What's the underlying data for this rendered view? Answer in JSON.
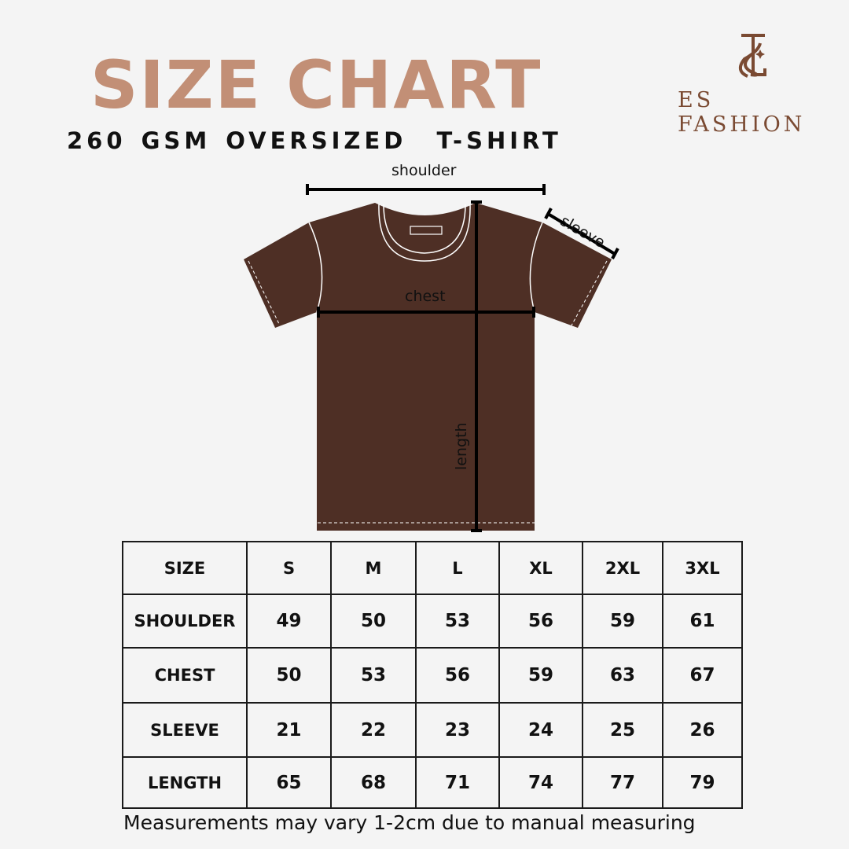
{
  "header": {
    "title": "SIZE CHART",
    "subtitle": "260 GSM OVERSIZED  T-SHIRT"
  },
  "brand": {
    "name": "ES FASHION",
    "monogram": "ES",
    "color": "#7a4a32"
  },
  "diagram": {
    "labels": {
      "shoulder": "shoulder",
      "sleeve": "sleeve",
      "chest": "chest",
      "length": "length"
    },
    "shirt_color": "#4e2f25"
  },
  "colors": {
    "title": "#c28f76"
  },
  "table": {
    "headers": [
      "SIZE",
      "S",
      "M",
      "L",
      "XL",
      "2XL",
      "3XL"
    ],
    "rows": [
      {
        "label": "SHOULDER",
        "values": [
          "49",
          "50",
          "53",
          "56",
          "59",
          "61"
        ]
      },
      {
        "label": "CHEST",
        "values": [
          "50",
          "53",
          "56",
          "59",
          "63",
          "67"
        ]
      },
      {
        "label": "SLEEVE",
        "values": [
          "21",
          "22",
          "23",
          "24",
          "25",
          "26"
        ]
      },
      {
        "label": "LENGTH",
        "values": [
          "65",
          "68",
          "71",
          "74",
          "77",
          "79"
        ]
      }
    ]
  },
  "footer": {
    "note": "Measurements may vary 1-2cm due to manual measuring"
  }
}
